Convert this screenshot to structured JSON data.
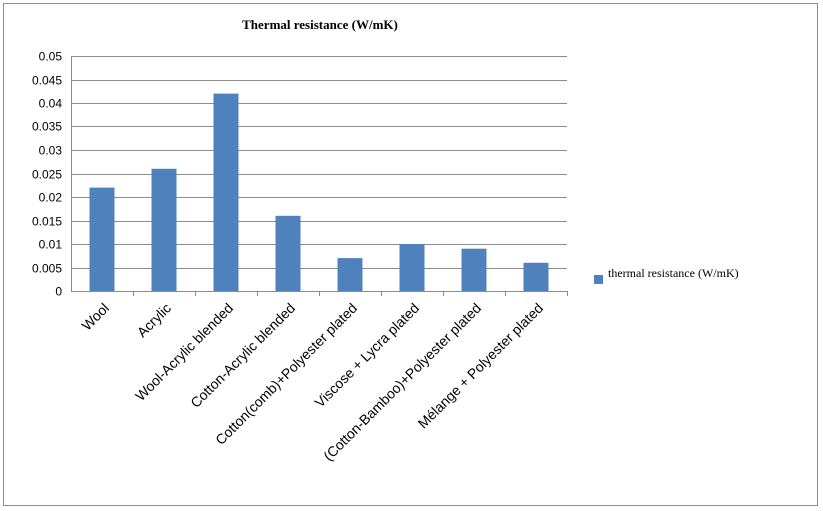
{
  "chart_data": {
    "type": "bar",
    "title": "Thermal resistance (W/mK)",
    "categories": [
      "Wool",
      "Acrylic",
      "Wool-Acrylic blended",
      "Cotton-Acrylic blended",
      "Cotton(comb)+Polyester plated",
      "Viscose + Lycra plated",
      "(Cotton-Bamboo)+Polyester  plated",
      "Mélange + Polyester  plated"
    ],
    "series": [
      {
        "name": "thermal resistance (W/mK)",
        "color": "#4f81bd",
        "values": [
          0.022,
          0.026,
          0.042,
          0.016,
          0.007,
          0.01,
          0.009,
          0.006
        ]
      }
    ],
    "y_ticks": [
      "0",
      "0.005",
      "0.01",
      "0.015",
      "0.02",
      "0.025",
      "0.03",
      "0.035",
      "0.04",
      "0.045",
      "0.05"
    ],
    "ylim": [
      0,
      0.05
    ],
    "grid": true,
    "legend": "right"
  }
}
